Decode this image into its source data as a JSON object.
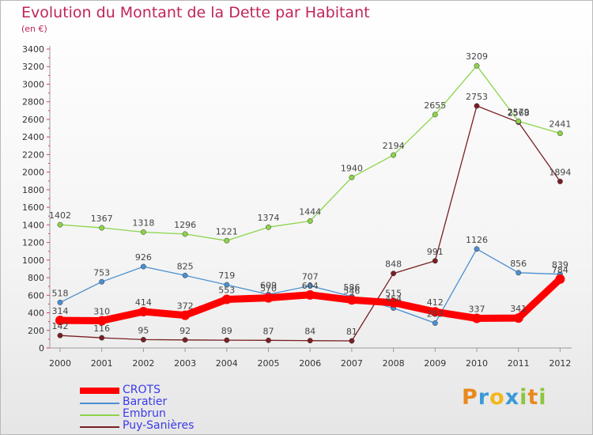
{
  "title": "Evolution du Montant de la Dette par Habitant",
  "subtitle": "(en €)",
  "logo": {
    "text": "Proxiti",
    "letters": [
      {
        "ch": "P",
        "color": "#e8891e"
      },
      {
        "ch": "r",
        "color": "#3a9ad6"
      },
      {
        "ch": "o",
        "color": "#f2b71a"
      },
      {
        "ch": "x",
        "color": "#3a9ad6"
      },
      {
        "ch": "i",
        "color": "#8cc63f"
      },
      {
        "ch": "t",
        "color": "#e8891e"
      },
      {
        "ch": "i",
        "color": "#8cc63f"
      }
    ]
  },
  "chart_data": {
    "type": "line",
    "title": "Evolution du Montant de la Dette par Habitant",
    "subtitle": "(en €)",
    "x": [
      "2000",
      "2001",
      "2002",
      "2003",
      "2004",
      "2005",
      "2006",
      "2007",
      "2008",
      "2009",
      "2010",
      "2011",
      "2012"
    ],
    "ylim": [
      0,
      3400
    ],
    "yticks": [
      "0",
      "200",
      "400",
      "600",
      "800",
      "1000",
      "1200",
      "1400",
      "1600",
      "1800",
      "2000",
      "2200",
      "2400",
      "2600",
      "2800",
      "3000",
      "3200",
      "3400"
    ],
    "grid": false,
    "legend": "bottom-left",
    "series": [
      {
        "name": "CROTS",
        "color": "#ff0000",
        "values": [
          314,
          310,
          414,
          372,
          553,
          570,
          604,
          546,
          515,
          412,
          337,
          341,
          784
        ]
      },
      {
        "name": "Baratier",
        "color": "#4a8fd0",
        "values": [
          518,
          753,
          926,
          825,
          719,
          609,
          707,
          586,
          454,
          283,
          1126,
          856,
          839
        ]
      },
      {
        "name": "Embrun",
        "color": "#8cd44a",
        "values": [
          1402,
          1367,
          1318,
          1296,
          1221,
          1374,
          1444,
          1940,
          2194,
          2655,
          3209,
          2579,
          2441
        ]
      },
      {
        "name": "Puy-Sanières",
        "color": "#7a1f24",
        "values": [
          142,
          116,
          95,
          92,
          89,
          87,
          84,
          81,
          848,
          991,
          2753,
          2568,
          1894
        ]
      }
    ],
    "data_labels": [
      [
        "314",
        "310",
        "414",
        "372",
        "553",
        "570",
        "604",
        "546",
        "515",
        "412",
        "337",
        "341",
        "784"
      ],
      [
        "518",
        "753",
        "926",
        "825",
        "719",
        "609",
        "707",
        "586",
        "454",
        "283",
        "1126",
        "856",
        "839"
      ],
      [
        "1402",
        "1367",
        "1318",
        "1296",
        "1221",
        "1374",
        "1444",
        "1940",
        "2194",
        "2655",
        "3209",
        "2579",
        "2441"
      ],
      [
        "142",
        "116",
        "95",
        "92",
        "89",
        "87",
        "84",
        "81",
        "848",
        "991",
        "2753",
        "2568",
        "1894"
      ]
    ]
  }
}
